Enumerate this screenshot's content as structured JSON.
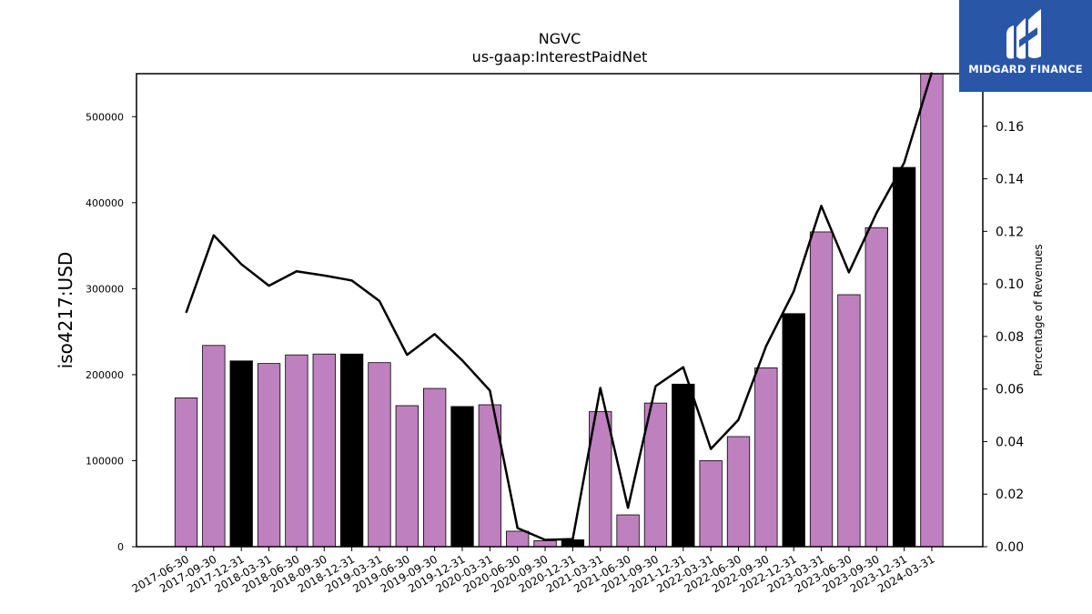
{
  "brand": {
    "name": "MIDGARD FINANCE",
    "bg_color": "#2a56a8"
  },
  "chart_data": {
    "type": "bar",
    "title": "NGVC",
    "subtitle": "us-gaap:InterestPaidNet",
    "ylabel": "iso4217:USD",
    "y2label": "Percentage of Revenues",
    "ylim": [
      0,
      550000
    ],
    "y2lim": [
      0,
      0.18
    ],
    "yticks": [
      0,
      100000,
      200000,
      300000,
      400000,
      500000
    ],
    "y2ticks": [
      "0.00",
      "0.02",
      "0.04",
      "0.06",
      "0.08",
      "0.10",
      "0.12",
      "0.14",
      "0.16"
    ],
    "grid": false,
    "categories": [
      "2017-06-30",
      "2017-09-30",
      "2017-12-31",
      "2018-03-31",
      "2018-06-30",
      "2018-09-30",
      "2018-12-31",
      "2019-03-31",
      "2019-06-30",
      "2019-09-30",
      "2019-12-31",
      "2020-03-31",
      "2020-06-30",
      "2020-09-30",
      "2020-12-31",
      "2021-03-31",
      "2021-06-30",
      "2021-09-30",
      "2021-12-31",
      "2022-03-31",
      "2022-06-30",
      "2022-09-30",
      "2022-12-31",
      "2023-03-31",
      "2023-06-30",
      "2023-09-30",
      "2023-12-31",
      "2024-03-31"
    ],
    "series": [
      {
        "type": "bar",
        "values": [
          173000,
          234000,
          216000,
          213000,
          223000,
          224000,
          224000,
          214000,
          164000,
          184000,
          163000,
          165000,
          18000,
          7000,
          8000,
          157000,
          37000,
          167000,
          189000,
          100000,
          128000,
          208000,
          271000,
          366000,
          293000,
          371000,
          441000,
          550000
        ],
        "colors": [
          "#bf80bf",
          "#bf80bf",
          "#000000",
          "#bf80bf",
          "#bf80bf",
          "#bf80bf",
          "#000000",
          "#bf80bf",
          "#bf80bf",
          "#bf80bf",
          "#000000",
          "#bf80bf",
          "#bf80bf",
          "#bf80bf",
          "#000000",
          "#bf80bf",
          "#bf80bf",
          "#bf80bf",
          "#000000",
          "#bf80bf",
          "#bf80bf",
          "#bf80bf",
          "#000000",
          "#bf80bf",
          "#bf80bf",
          "#bf80bf",
          "#000000",
          "#bf80bf"
        ]
      },
      {
        "type": "line",
        "axis": "right",
        "color": "#000000",
        "values": [
          0.089,
          0.1185,
          0.1075,
          0.0993,
          0.1048,
          0.1032,
          0.1013,
          0.0935,
          0.073,
          0.0809,
          0.0709,
          0.0594,
          0.0071,
          0.0026,
          0.0029,
          0.0604,
          0.0148,
          0.0611,
          0.0683,
          0.0372,
          0.0483,
          0.0763,
          0.0971,
          0.1297,
          0.1044,
          0.127,
          0.1461,
          0.1805
        ]
      }
    ]
  }
}
